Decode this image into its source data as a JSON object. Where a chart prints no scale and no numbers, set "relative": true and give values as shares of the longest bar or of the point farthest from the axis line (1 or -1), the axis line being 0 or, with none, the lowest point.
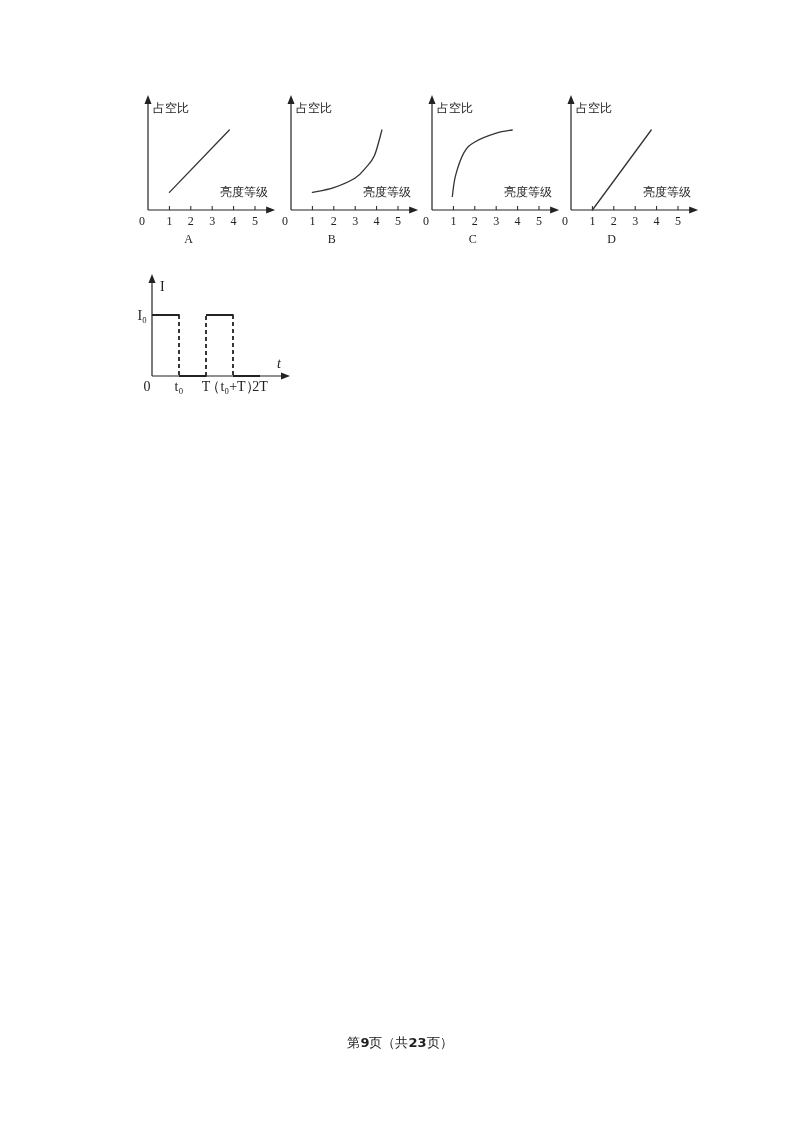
{
  "chart_data": [
    {
      "type": "line",
      "title": "A",
      "xlabel": "亮度等级",
      "ylabel": "占空比",
      "relative": true,
      "xlim": [
        0,
        5.8
      ],
      "xticks": [
        0,
        1,
        2,
        3,
        4,
        5
      ],
      "series": [
        {
          "color": "#333333",
          "x": [
            1,
            3.8
          ],
          "values": [
            0.22,
            1
          ]
        }
      ]
    },
    {
      "type": "line",
      "title": "B",
      "xlabel": "亮度等级",
      "ylabel": "占空比",
      "relative": true,
      "xlim": [
        0,
        5.8
      ],
      "xticks": [
        0,
        1,
        2,
        3,
        4,
        5
      ],
      "series": [
        {
          "color": "#333333",
          "x": [
            1,
            2,
            3,
            3.5,
            3.9,
            4.25
          ],
          "values": [
            0.22,
            0.28,
            0.4,
            0.53,
            0.68,
            1
          ]
        }
      ]
    },
    {
      "type": "line",
      "title": "C",
      "xlabel": "亮度等级",
      "ylabel": "占空比",
      "relative": true,
      "xlim": [
        0,
        5.8
      ],
      "xticks": [
        0,
        1,
        2,
        3,
        4,
        5
      ],
      "series": [
        {
          "color": "#333333",
          "x": [
            0.95,
            1.1,
            1.5,
            2,
            3,
            3.75
          ],
          "values": [
            0.17,
            0.43,
            0.72,
            0.85,
            0.96,
            1
          ]
        }
      ]
    },
    {
      "type": "line",
      "title": "D",
      "xlabel": "亮度等级",
      "ylabel": "占空比",
      "relative": true,
      "xlim": [
        0,
        5.8
      ],
      "xticks": [
        0,
        1,
        2,
        3,
        4,
        5
      ],
      "series": [
        {
          "color": "#333333",
          "x": [
            1,
            3.75
          ],
          "values": [
            0,
            1
          ]
        }
      ]
    },
    {
      "type": "step",
      "xlabel": "t",
      "ylabel": "I",
      "relative": true,
      "categories": [
        "0",
        "t₀",
        "T",
        "（t₀+T）",
        "2T"
      ],
      "series": [
        {
          "color": "#222222",
          "line_style": "dashed",
          "values": [
            1,
            0,
            1,
            0,
            0
          ]
        }
      ],
      "annotations": [
        "I₀",
        "第**9**页（共**23**页）"
      ]
    }
  ]
}
